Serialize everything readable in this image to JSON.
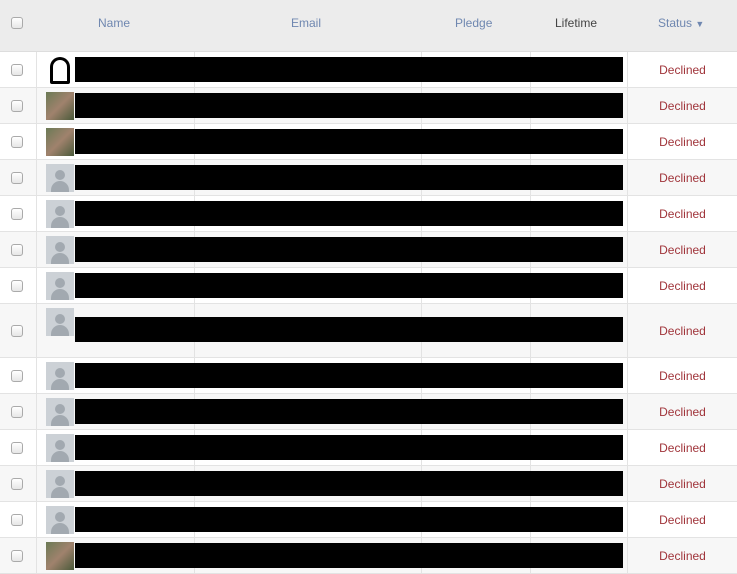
{
  "header": {
    "name": "Name",
    "email": "Email",
    "pledge": "Pledge",
    "lifetime": "Lifetime",
    "status": "Status",
    "status_sort_icon": "caret-down-icon"
  },
  "colors": {
    "link": "#6f87b0",
    "declined": "#a0343a"
  },
  "rows": [
    {
      "avatar": "custom-bw",
      "status": "Declined"
    },
    {
      "avatar": "photo",
      "status": "Declined"
    },
    {
      "avatar": "photo",
      "status": "Declined"
    },
    {
      "avatar": "default",
      "status": "Declined"
    },
    {
      "avatar": "default",
      "status": "Declined"
    },
    {
      "avatar": "default",
      "status": "Declined"
    },
    {
      "avatar": "default",
      "status": "Declined"
    },
    {
      "avatar": "default",
      "status": "Declined",
      "tall": true
    },
    {
      "avatar": "default",
      "status": "Declined"
    },
    {
      "avatar": "default",
      "status": "Declined"
    },
    {
      "avatar": "default",
      "status": "Declined"
    },
    {
      "avatar": "default",
      "status": "Declined"
    },
    {
      "avatar": "default",
      "status": "Declined"
    },
    {
      "avatar": "photo",
      "status": "Declined"
    }
  ]
}
